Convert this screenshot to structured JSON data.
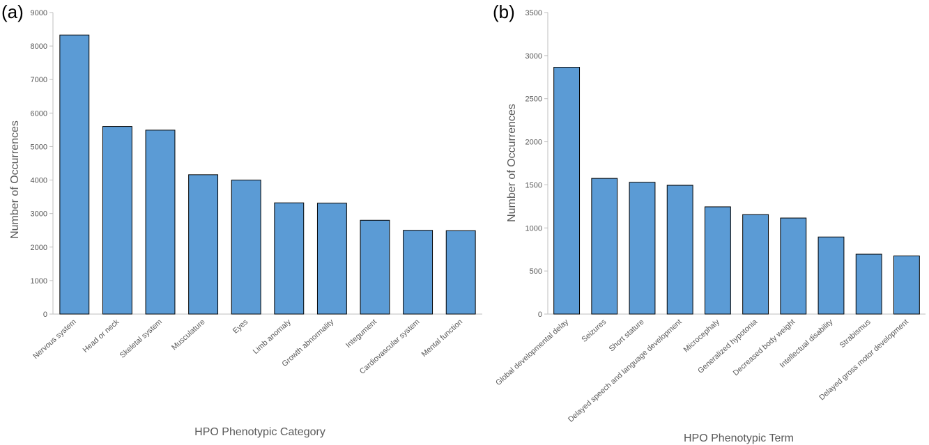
{
  "chart_data": [
    {
      "type": "bar",
      "panel_label": "(a)",
      "xlabel": "HPO Phenotypic Category",
      "ylabel": "Number of Occurrences",
      "ylim": [
        0,
        9000
      ],
      "yticks": [
        0,
        1000,
        2000,
        3000,
        4000,
        5000,
        6000,
        7000,
        8000,
        9000
      ],
      "categories": [
        "Nervous system",
        "Head or neck",
        "Skeletal system",
        "Musculature",
        "Eyes",
        "Limb anomaly",
        "Growth abnormality",
        "Integument",
        "Cardiovascular system",
        "Mental function"
      ],
      "values": [
        8330,
        5600,
        5490,
        4160,
        4000,
        3320,
        3310,
        2800,
        2500,
        2490
      ],
      "bar_color": "#5B9BD5",
      "grid": false,
      "legend": "none"
    },
    {
      "type": "bar",
      "panel_label": "(b)",
      "xlabel": "HPO Phenotypic Term",
      "ylabel": "Number of Occurrences",
      "ylim": [
        0,
        3500
      ],
      "yticks": [
        0,
        500,
        1000,
        1500,
        2000,
        2500,
        3000,
        3500
      ],
      "categories": [
        "Global developmental delay",
        "Seizures",
        "Short stature",
        "Delayed speech and language development",
        "Microcephaly",
        "Generalized hypotonia",
        "Decreased body weight",
        "Intellectual disability",
        "Strabismus",
        "Delayed gross motor development"
      ],
      "values": [
        2865,
        1575,
        1530,
        1495,
        1245,
        1155,
        1115,
        895,
        695,
        675
      ],
      "bar_color": "#5B9BD5",
      "grid": false,
      "legend": "none"
    }
  ]
}
